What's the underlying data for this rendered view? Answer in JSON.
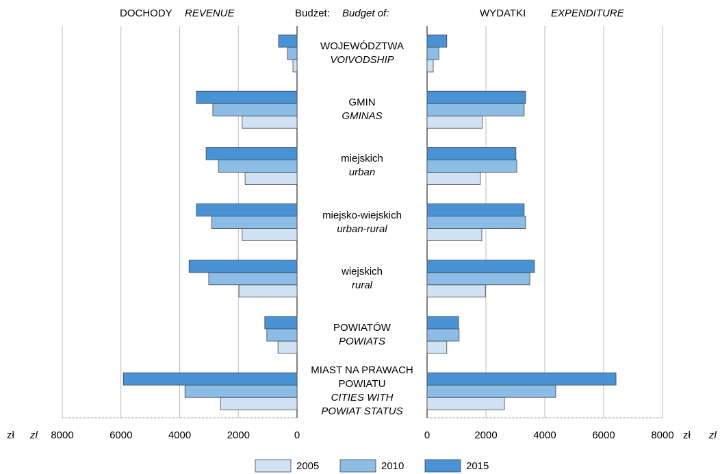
{
  "chart_data": {
    "type": "bar",
    "header": "Budżet:",
    "header_en": "Budget of:",
    "categories": [
      "WOJEWÓDZTWA",
      "GMIN",
      "miejskich",
      "miejsko-wiejskich",
      "wiejskich",
      "POWIATÓW",
      "MIAST NA PRAWACH\nPOWIATU"
    ],
    "categories_en": [
      "VOIVODSHIP",
      "GMINAS",
      "urban",
      "urban-rural",
      "rural",
      "POWIATS",
      "CITIES WITH\nPOWIAT STATUS"
    ],
    "series": [
      {
        "name": "2005",
        "color": "#cfe3f4"
      },
      {
        "name": "2010",
        "color": "#8cbde6"
      },
      {
        "name": "2015",
        "color": "#4a92d6"
      }
    ],
    "grid": true,
    "legend": "bottom",
    "revenue": {
      "title": "DOCHODY",
      "title_en": "REVENUE",
      "direction": "left",
      "unit": "zł",
      "unit_en": "zl",
      "xlim": [
        0,
        8000
      ],
      "xticks": [
        0,
        2000,
        4000,
        6000,
        8000
      ],
      "values": [
        [
          140,
          1870,
          1770,
          1870,
          1980,
          650,
          2610
        ],
        [
          330,
          2870,
          2680,
          2910,
          3010,
          1030,
          3820
        ],
        [
          630,
          3430,
          3100,
          3430,
          3680,
          1100,
          5920
        ]
      ]
    },
    "expenditure": {
      "title": "WYDATKI",
      "title_en": "EXPENDITURE",
      "direction": "right",
      "unit": "zł",
      "unit_en": "zl",
      "xlim": [
        0,
        8000
      ],
      "xticks": [
        0,
        2000,
        4000,
        6000,
        8000
      ],
      "values": [
        [
          210,
          1880,
          1810,
          1860,
          1980,
          670,
          2630
        ],
        [
          400,
          3300,
          3050,
          3350,
          3490,
          1090,
          4370
        ],
        [
          670,
          3350,
          3020,
          3300,
          3650,
          1070,
          6420
        ]
      ]
    }
  }
}
